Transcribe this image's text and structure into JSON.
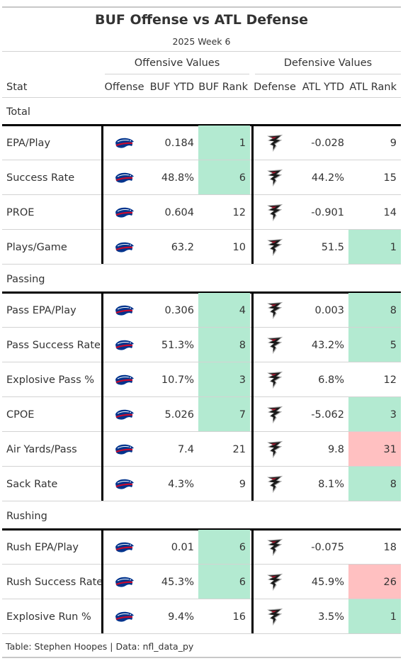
{
  "chart_data": {
    "type": "table",
    "title": "BUF Offense vs ATL Defense",
    "subtitle": "2025 Week 6",
    "spanners": {
      "offense": "Offensive Values",
      "defense": "Defensive Values"
    },
    "columns": [
      "Stat",
      "Offense",
      "BUF YTD",
      "BUF Rank",
      "Defense",
      "ATL YTD",
      "ATL Rank"
    ],
    "highlight_colors": {
      "good": "#b3ead1",
      "bad": "#ffc0c1"
    },
    "offense_icon": "buffalo-bills-logo-icon",
    "defense_icon": "falcons-logo-icon",
    "groups": [
      {
        "name": "Total",
        "rows": [
          {
            "stat": "EPA/Play",
            "buf_ytd": "0.184",
            "buf_rank": "1",
            "buf_hl": "good",
            "atl_ytd": "-0.028",
            "atl_rank": "9",
            "atl_hl": ""
          },
          {
            "stat": "Success Rate",
            "buf_ytd": "48.8%",
            "buf_rank": "6",
            "buf_hl": "good",
            "atl_ytd": "44.2%",
            "atl_rank": "15",
            "atl_hl": ""
          },
          {
            "stat": "PROE",
            "buf_ytd": "0.604",
            "buf_rank": "12",
            "buf_hl": "",
            "atl_ytd": "-0.901",
            "atl_rank": "14",
            "atl_hl": ""
          },
          {
            "stat": "Plays/Game",
            "buf_ytd": "63.2",
            "buf_rank": "10",
            "buf_hl": "",
            "atl_ytd": "51.5",
            "atl_rank": "1",
            "atl_hl": "good"
          }
        ]
      },
      {
        "name": "Passing",
        "rows": [
          {
            "stat": "Pass EPA/Play",
            "buf_ytd": "0.306",
            "buf_rank": "4",
            "buf_hl": "good",
            "atl_ytd": "0.003",
            "atl_rank": "8",
            "atl_hl": "good"
          },
          {
            "stat": "Pass Success Rate",
            "buf_ytd": "51.3%",
            "buf_rank": "8",
            "buf_hl": "good",
            "atl_ytd": "43.2%",
            "atl_rank": "5",
            "atl_hl": "good"
          },
          {
            "stat": "Explosive Pass %",
            "buf_ytd": "10.7%",
            "buf_rank": "3",
            "buf_hl": "good",
            "atl_ytd": "6.8%",
            "atl_rank": "12",
            "atl_hl": ""
          },
          {
            "stat": "CPOE",
            "buf_ytd": "5.026",
            "buf_rank": "7",
            "buf_hl": "good",
            "atl_ytd": "-5.062",
            "atl_rank": "3",
            "atl_hl": "good"
          },
          {
            "stat": "Air Yards/Pass",
            "buf_ytd": "7.4",
            "buf_rank": "21",
            "buf_hl": "",
            "atl_ytd": "9.8",
            "atl_rank": "31",
            "atl_hl": "bad"
          },
          {
            "stat": "Sack Rate",
            "buf_ytd": "4.3%",
            "buf_rank": "9",
            "buf_hl": "",
            "atl_ytd": "8.1%",
            "atl_rank": "8",
            "atl_hl": "good"
          }
        ]
      },
      {
        "name": "Rushing",
        "rows": [
          {
            "stat": "Rush EPA/Play",
            "buf_ytd": "0.01",
            "buf_rank": "6",
            "buf_hl": "good",
            "atl_ytd": "-0.075",
            "atl_rank": "18",
            "atl_hl": ""
          },
          {
            "stat": "Rush Success Rate",
            "buf_ytd": "45.3%",
            "buf_rank": "6",
            "buf_hl": "good",
            "atl_ytd": "45.9%",
            "atl_rank": "26",
            "atl_hl": "bad"
          },
          {
            "stat": "Explosive Run %",
            "buf_ytd": "9.4%",
            "buf_rank": "16",
            "buf_hl": "",
            "atl_ytd": "3.5%",
            "atl_rank": "1",
            "atl_hl": "good"
          }
        ]
      }
    ],
    "source_note": "Table: Stephen Hoopes | Data: nfl_data_py"
  }
}
